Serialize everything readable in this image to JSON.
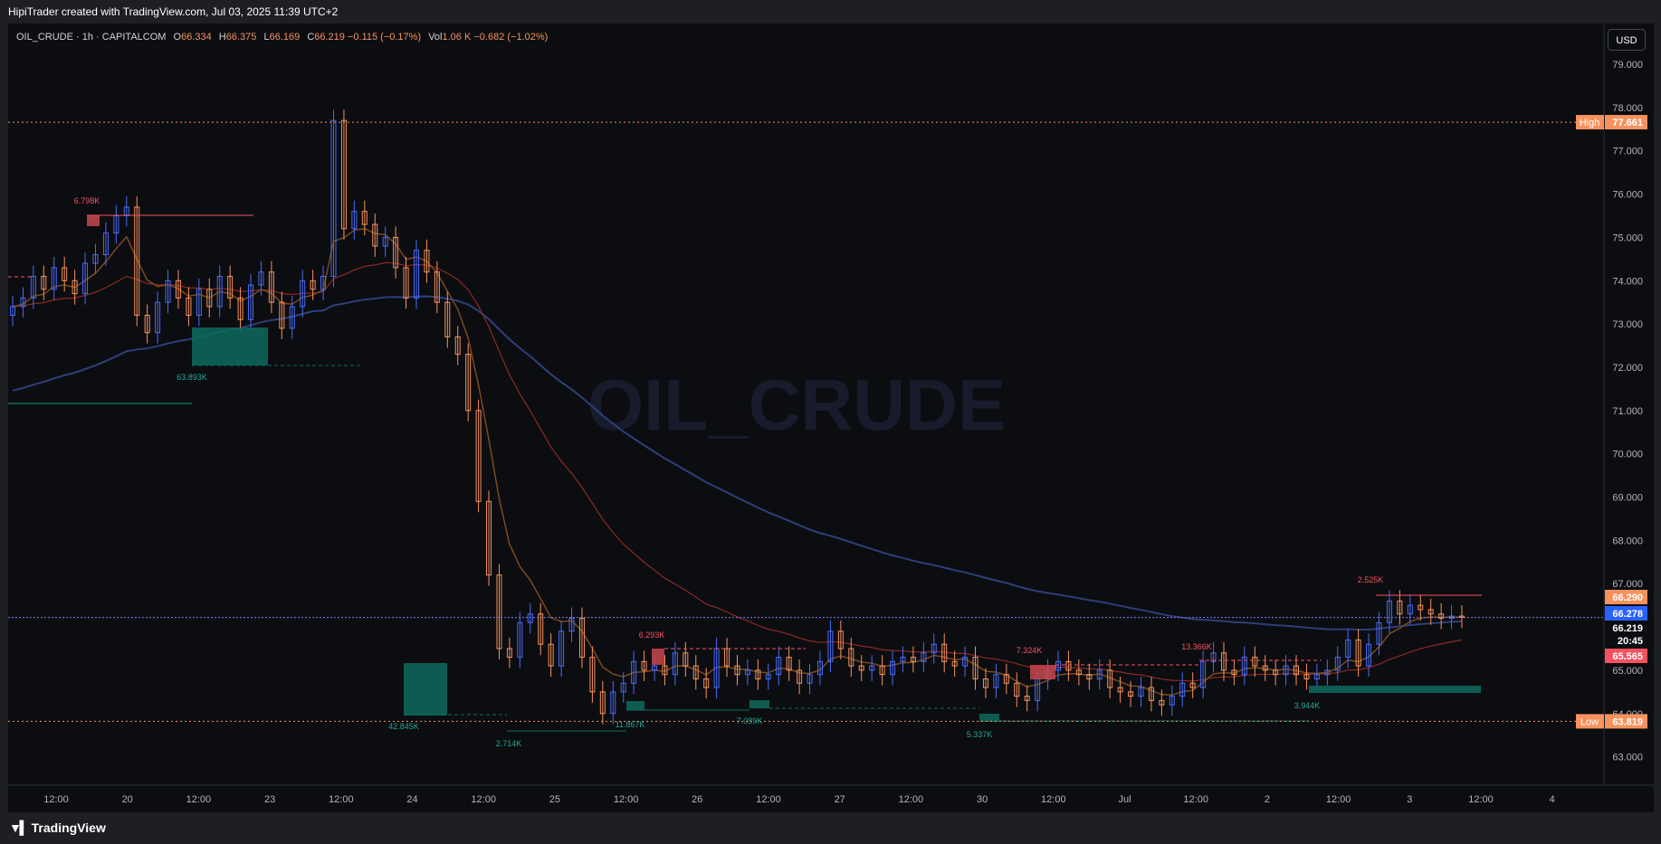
{
  "header": {
    "title": "HipiTrader created with TradingView.com, Jul 03, 2025 11:39 UTC+2"
  },
  "legend": {
    "symbol": "OIL_CRUDE · 1h · CAPITALCOM",
    "open_label": "O",
    "open": "66.334",
    "high_label": "H",
    "high": "66.375",
    "low_label": "L",
    "low": "66.169",
    "close_label": "C",
    "close": "66.219",
    "change": "−0.115 (−0.17%)",
    "vol_label": "Vol",
    "vol": "1.06 K",
    "vol_change": "−0.682 (−1.02%)"
  },
  "toolbar": {
    "currency": "USD"
  },
  "footer": {
    "brand": "TradingView"
  },
  "colors": {
    "background": "#0c0d10",
    "up": "#4a6cf7",
    "down": "#f7925f",
    "supply_zone": "#c8464f",
    "demand_zone": "#0e6b5e",
    "ema_fast": "#7a4a1e",
    "ema_mid": "#8b2a24",
    "ema_slow": "#2d3f7a",
    "watermark": "#181b2b"
  },
  "chart_data": {
    "type": "candlestick",
    "watermark": "OIL_CRUDE",
    "y_axis": {
      "ticks": [
        "79.000",
        "78.000",
        "77.000",
        "76.000",
        "75.000",
        "74.000",
        "73.000",
        "72.000",
        "71.000",
        "70.000",
        "69.000",
        "68.000",
        "67.000",
        "66.000",
        "65.000",
        "64.000",
        "63.000"
      ],
      "ylim": [
        62.5,
        79.6
      ]
    },
    "x_axis": {
      "ticks": [
        "12:00",
        "20",
        "12:00",
        "23",
        "12:00",
        "24",
        "12:00",
        "25",
        "12:00",
        "26",
        "12:00",
        "27",
        "12:00",
        "30",
        "12:00",
        "Jul",
        "12:00",
        "2",
        "12:00",
        "3",
        "12:00",
        "4"
      ]
    },
    "price_labels": [
      {
        "text": "High",
        "value": "77.661",
        "kind": "high"
      },
      {
        "text": "",
        "value": "66.290",
        "kind": "orange"
      },
      {
        "text": "",
        "value": "66.278",
        "kind": "blue"
      },
      {
        "text": "",
        "value": "66.219",
        "kind": "current"
      },
      {
        "text": "",
        "value": "20:45",
        "kind": "countdown"
      },
      {
        "text": "",
        "value": "65.565",
        "kind": "red"
      },
      {
        "text": "Low",
        "value": "63.819",
        "kind": "low"
      }
    ],
    "volume_annotations": [
      "6.798K",
      "63.893K",
      "42.845K",
      "2.714K",
      "11.867K",
      "6.293K",
      "7.089K",
      "5.337K",
      "7.324K",
      "13.366K",
      "3.944K",
      "2.525K"
    ],
    "close_series": [
      73.4,
      73.6,
      74.1,
      73.8,
      74.3,
      74.0,
      73.7,
      74.4,
      74.6,
      75.1,
      75.5,
      75.7,
      73.2,
      72.8,
      73.5,
      74.0,
      73.6,
      73.2,
      73.8,
      73.4,
      74.1,
      73.6,
      73.1,
      73.9,
      74.2,
      73.5,
      72.9,
      73.4,
      74.0,
      73.8,
      74.1,
      77.7,
      75.2,
      75.6,
      75.3,
      74.8,
      75.0,
      74.3,
      73.6,
      74.7,
      74.2,
      73.5,
      72.7,
      72.3,
      71.0,
      68.9,
      67.2,
      65.5,
      65.3,
      66.1,
      66.3,
      65.6,
      65.1,
      65.9,
      66.2,
      65.3,
      64.5,
      64.0,
      64.5,
      64.7,
      65.2,
      65.0,
      65.1,
      64.9,
      65.4,
      65.1,
      64.8,
      64.6,
      65.5,
      65.1,
      64.9,
      65.0,
      64.8,
      64.9,
      65.3,
      65.0,
      64.7,
      64.9,
      65.2,
      65.9,
      65.5,
      65.1,
      65.0,
      65.1,
      64.9,
      65.2,
      65.3,
      65.2,
      65.4,
      65.6,
      65.2,
      65.1,
      65.3,
      64.8,
      64.6,
      64.9,
      64.7,
      64.4,
      64.3,
      64.8,
      65.0,
      65.2,
      65.0,
      64.9,
      64.8,
      65.0,
      64.6,
      64.5,
      64.4,
      64.6,
      64.3,
      64.2,
      64.4,
      64.7,
      64.6,
      65.2,
      65.4,
      65.0,
      64.9,
      65.3,
      65.1,
      65.0,
      64.9,
      65.1,
      64.9,
      64.8,
      64.9,
      65.0,
      65.3,
      65.7,
      65.1,
      65.6,
      66.1,
      66.6,
      66.3,
      66.5,
      66.4,
      66.3,
      66.2,
      66.25,
      66.22
    ]
  }
}
